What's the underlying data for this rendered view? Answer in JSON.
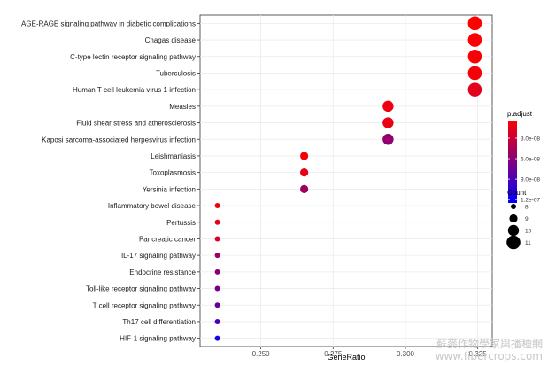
{
  "chart_data": {
    "type": "scatter",
    "xlabel": "GeneRatio",
    "xlim": [
      0.229,
      0.33
    ],
    "x_ticks": [
      "0.250",
      "0.275",
      "0.300",
      "0.325"
    ],
    "x_tick_values": [
      0.25,
      0.275,
      0.3,
      0.325
    ],
    "categories": [
      "AGE-RAGE signaling pathway in diabetic complications",
      "Chagas disease",
      "C-type lectin receptor signaling pathway",
      "Tuberculosis",
      "Human T-cell leukemia virus 1 infection",
      "Measles",
      "Fluid shear stress and atherosclerosis",
      "Kaposi sarcoma-associated herpesvirus infection",
      "Leishmaniasis",
      "Toxoplasmosis",
      "Yersinia infection",
      "Inflammatory bowel disease",
      "Pertussis",
      "Pancreatic cancer",
      "IL-17 signaling pathway",
      "Endocrine resistance",
      "Toll-like receptor signaling pathway",
      "T cell receptor signaling pathway",
      "Th17 cell differentiation",
      "HIF-1 signaling pathway"
    ],
    "points": [
      {
        "term": "AGE-RAGE signaling pathway in diabetic complications",
        "gene_ratio": 0.324,
        "count": 11,
        "p_adjust": 5e-09
      },
      {
        "term": "Chagas disease",
        "gene_ratio": 0.324,
        "count": 11,
        "p_adjust": 6e-09
      },
      {
        "term": "C-type lectin receptor signaling pathway",
        "gene_ratio": 0.324,
        "count": 11,
        "p_adjust": 7e-09
      },
      {
        "term": "Tuberculosis",
        "gene_ratio": 0.324,
        "count": 11,
        "p_adjust": 9e-09
      },
      {
        "term": "Human T-cell leukemia virus 1 infection",
        "gene_ratio": 0.324,
        "count": 11,
        "p_adjust": 1.8e-08
      },
      {
        "term": "Measles",
        "gene_ratio": 0.294,
        "count": 10,
        "p_adjust": 1.2e-08
      },
      {
        "term": "Fluid shear stress and atherosclerosis",
        "gene_ratio": 0.294,
        "count": 10,
        "p_adjust": 1.4e-08
      },
      {
        "term": "Kaposi sarcoma-associated herpesvirus infection",
        "gene_ratio": 0.294,
        "count": 10,
        "p_adjust": 5.6e-08
      },
      {
        "term": "Leishmaniasis",
        "gene_ratio": 0.265,
        "count": 9,
        "p_adjust": 8e-09
      },
      {
        "term": "Toxoplasmosis",
        "gene_ratio": 0.265,
        "count": 9,
        "p_adjust": 1.5e-08
      },
      {
        "term": "Yersinia infection",
        "gene_ratio": 0.265,
        "count": 9,
        "p_adjust": 5e-08
      },
      {
        "term": "Inflammatory bowel disease",
        "gene_ratio": 0.235,
        "count": 8,
        "p_adjust": 1.3e-08
      },
      {
        "term": "Pertussis",
        "gene_ratio": 0.235,
        "count": 8,
        "p_adjust": 1.5e-08
      },
      {
        "term": "Pancreatic cancer",
        "gene_ratio": 0.235,
        "count": 8,
        "p_adjust": 2e-08
      },
      {
        "term": "IL-17 signaling pathway",
        "gene_ratio": 0.235,
        "count": 8,
        "p_adjust": 5e-08
      },
      {
        "term": "Endocrine resistance",
        "gene_ratio": 0.235,
        "count": 8,
        "p_adjust": 6e-08
      },
      {
        "term": "Toll-like receptor signaling pathway",
        "gene_ratio": 0.235,
        "count": 8,
        "p_adjust": 7e-08
      },
      {
        "term": "T cell receptor signaling pathway",
        "gene_ratio": 0.235,
        "count": 8,
        "p_adjust": 7.5e-08
      },
      {
        "term": "Th17 cell differentiation",
        "gene_ratio": 0.235,
        "count": 8,
        "p_adjust": 9e-08
      },
      {
        "term": "HIF-1 signaling pathway",
        "gene_ratio": 0.235,
        "count": 8,
        "p_adjust": 1.15e-07
      }
    ],
    "color_legend": {
      "title": "p.adjust",
      "labels": [
        "3.0e-08",
        "6.0e-08",
        "9.0e-08",
        "1.2e-07"
      ],
      "values": [
        3e-08,
        6e-08,
        9e-08,
        1.2e-07
      ],
      "range": [
        4e-09,
        1.25e-07
      ],
      "color_low": "#ff0000",
      "color_high": "#0000ff"
    },
    "size_legend": {
      "title": "Count",
      "labels": [
        "8",
        "9",
        "10",
        "11"
      ],
      "values": [
        8,
        9,
        10,
        11
      ]
    },
    "grid": true
  },
  "watermark": {
    "line1": "蘇麥作物學家與播種網",
    "line2": "www.fibercrops.com"
  }
}
